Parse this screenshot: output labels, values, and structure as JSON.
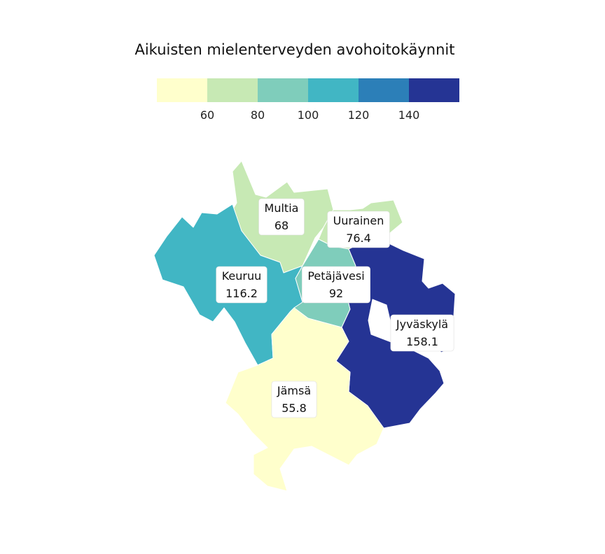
{
  "chart_data": {
    "type": "choropleth",
    "title": "Aikuisten mielenterveyden avohoitokäynnit",
    "legend": {
      "placement": "top",
      "ticks": [
        "60",
        "80",
        "100",
        "120",
        "140"
      ],
      "bins": [
        {
          "from": null,
          "to": 60,
          "color": "#ffffcc"
        },
        {
          "from": 60,
          "to": 80,
          "color": "#c7e9b4"
        },
        {
          "from": 80,
          "to": 100,
          "color": "#7fcdbb"
        },
        {
          "from": 100,
          "to": 120,
          "color": "#41b6c4"
        },
        {
          "from": 120,
          "to": 140,
          "color": "#2c7fb8"
        },
        {
          "from": 140,
          "to": null,
          "color": "#253494"
        }
      ]
    },
    "regions": [
      {
        "name": "Multia",
        "value": 68,
        "value_label": "68"
      },
      {
        "name": "Uurainen",
        "value": 76.4,
        "value_label": "76.4"
      },
      {
        "name": "Keuruu",
        "value": 116.2,
        "value_label": "116.2"
      },
      {
        "name": "Petäjävesi",
        "value": 92,
        "value_label": "92"
      },
      {
        "name": "Jyväskylä",
        "value": 158.1,
        "value_label": "158.1"
      },
      {
        "name": "Jämsä",
        "value": 55.8,
        "value_label": "55.8"
      }
    ]
  }
}
